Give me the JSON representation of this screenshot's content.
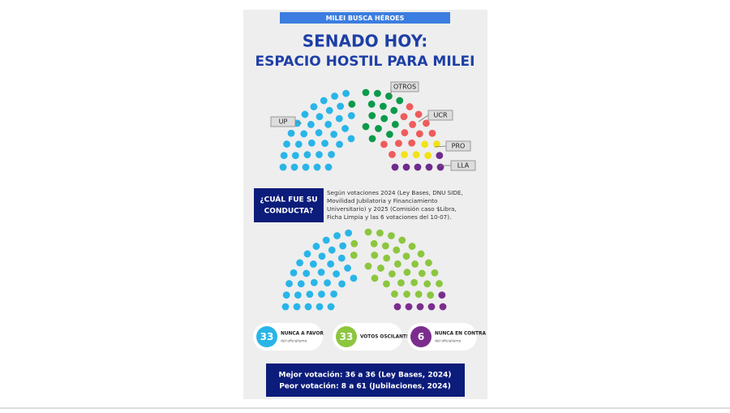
{
  "header": {
    "banner": "MILEI BUSCA HÉROES",
    "title_lines": [
      "SENADO HOY:",
      "ESPACIO HOSTIL PARA MILEI"
    ]
  },
  "chart_data": [
    {
      "type": "parliament",
      "series": [
        {
          "name": "UP",
          "color": "#29b5e8",
          "values": [
            34
          ]
        },
        {
          "name": "OTROS",
          "color": "#0b9a4b",
          "values": [
            15
          ]
        },
        {
          "name": "UCR",
          "color": "#ef5b5b",
          "values": [
            12
          ]
        },
        {
          "name": "PRO",
          "color": "#f2e21a",
          "values": [
            5
          ]
        },
        {
          "name": "LLA",
          "color": "#6e2b8c",
          "values": [
            6
          ]
        }
      ]
    },
    {
      "type": "parliament",
      "series": [
        {
          "name": "NUNCA A FAVOR",
          "subtitle": "del oficialismo",
          "color": "#29b5e8",
          "values": [
            33
          ]
        },
        {
          "name": "VOTOS OSCILANTES",
          "color": "#8cc63f",
          "values": [
            33
          ]
        },
        {
          "name": "NUNCA EN CONTRA",
          "subtitle": "del oficialismo",
          "color": "#7b2d8e",
          "values": [
            6
          ]
        }
      ]
    }
  ],
  "question": "¿CUÁL FUE SU CONDUCTA?",
  "note_lines": [
    "Según votaciones 2024 (Ley Bases, DNU SIDE,",
    "Movilidad Jubilatoria y Financiamiento",
    "Universitario) y 2025 (Comisión caso $Libra,",
    "Ficha Limpia y las 6 votaciones del 10-07)."
  ],
  "footer": {
    "lines": [
      "Mejor votación:  36 a 36 (Ley Bases, 2024)",
      "Peor votación: 8 a 61 (Jubilaciones, 2024)"
    ]
  }
}
